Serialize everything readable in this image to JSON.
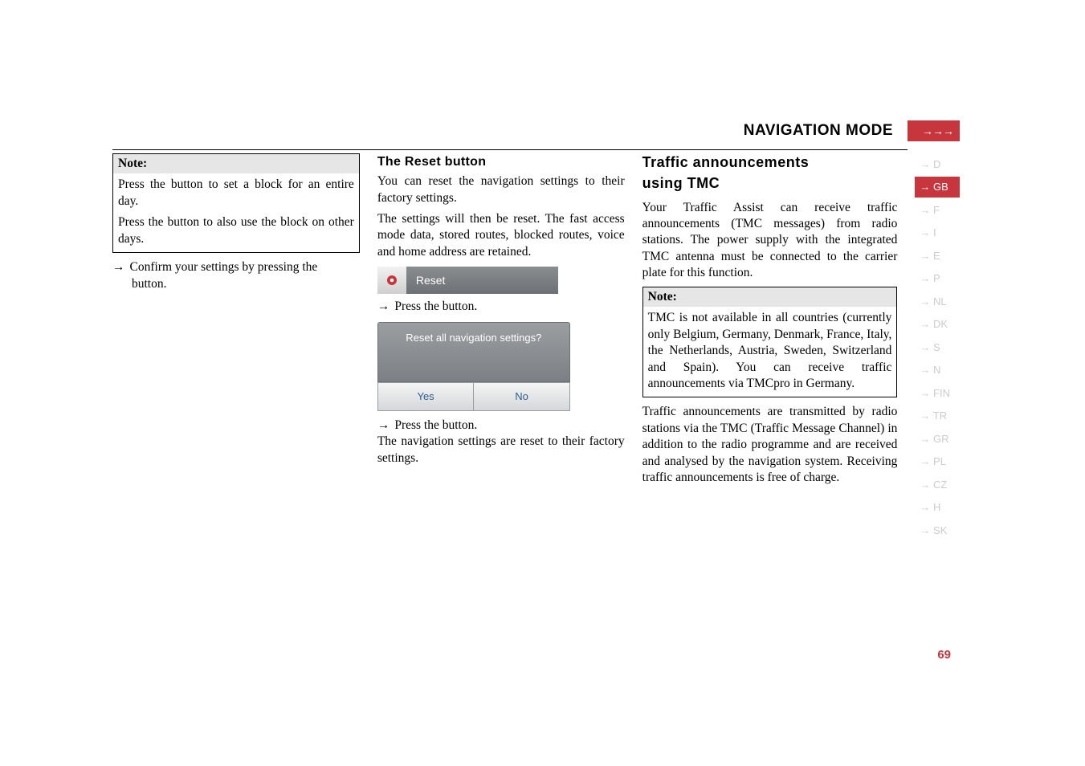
{
  "header": {
    "title": "NAVIGATION MODE",
    "badge_arrows": "→→→"
  },
  "sidebar": {
    "items": [
      "→ D",
      "→ GB",
      "→ F",
      "→ I",
      "→ E",
      "→ P",
      "→ NL",
      "→ DK",
      "→ S",
      "→ N",
      "→ FIN",
      "→ TR",
      "→ GR",
      "→ PL",
      "→ CZ",
      "→ H",
      "→ SK"
    ],
    "active_index": 1
  },
  "col1": {
    "note_heading": "Note:",
    "note_line1a": "Press the ",
    "note_line1b": " button to set a block for an entire day.",
    "note_line2a": "Press the ",
    "note_line2b": " button to also use the block on other days.",
    "confirm_arrow": "→",
    "confirm_text": "Confirm your settings by pressing the",
    "confirm_rest": "button."
  },
  "col2": {
    "heading": "The Reset button",
    "p1": "You can reset the navigation settings to their factory settings.",
    "p2": "The settings will then be reset. The fast access mode data, stored routes, blocked routes, voice and home address are retained.",
    "reset_bar_label": "Reset",
    "press_arrow": "→",
    "press_text": "Press the ",
    "press_rest": " button.",
    "dialog_text": "Reset all navigation settings?",
    "dialog_yes": "Yes",
    "dialog_no": "No",
    "press2_arrow": "→",
    "press2_text": "Press the ",
    "press2_rest": " button.",
    "p3": "The navigation settings are reset to their factory settings."
  },
  "col3": {
    "heading1": "Traffic announcements",
    "heading2": "using TMC",
    "p1": "Your Traffic Assist can receive traffic announcements (TMC messages) from radio stations. The power supply with the integrated TMC antenna must be connected to the carrier plate for this function.",
    "note_heading": "Note:",
    "note_body": "TMC is not available in all countries (currently only Belgium, Germany, Denmark, France, Italy, the Netherlands, Austria, Sweden, Switzerland and Spain). You can receive traffic announcements via TMCpro in Germany.",
    "p2": "Traffic announcements are transmitted by radio stations via the TMC (Traffic Message Channel) in addition to the radio programme and are received and analysed by the navigation system. Receiving traffic announcements is free of charge."
  },
  "page_number": "69",
  "colors": {
    "accent": "#c7353d",
    "sidebar_inactive_text": "#cccccc",
    "dialog_link": "#2b5e8f"
  },
  "fonts": {
    "body_family": "Georgia",
    "heading_family": "Arial",
    "body_size_pt": 11.5,
    "heading_size_pt": 12,
    "traffic_heading_size_pt": 14,
    "header_title_size_pt": 15
  }
}
